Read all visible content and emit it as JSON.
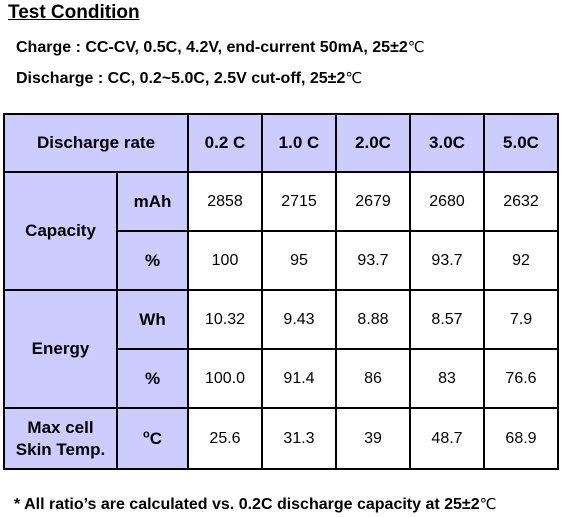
{
  "title": "Test Condition",
  "conditions": {
    "charge": "Charge : CC-CV, 0.5C, 4.2V, end-current 50mA, 25±2",
    "charge_unit": "℃",
    "discharge": "Discharge : CC, 0.2~5.0C, 2.5V cut-off, 25±2",
    "discharge_unit": "℃"
  },
  "table": {
    "header_label": "Discharge rate",
    "rates": [
      "0.2 C",
      "1.0 C",
      "2.0C",
      "3.0C",
      "5.0C"
    ],
    "capacity": {
      "label": "Capacity",
      "mah_unit": "mAh",
      "mah": [
        "2858",
        "2715",
        "2679",
        "2680",
        "2632"
      ],
      "pct_unit": "%",
      "pct": [
        "100",
        "95",
        "93.7",
        "93.7",
        "92"
      ]
    },
    "energy": {
      "label": "Energy",
      "wh_unit": "Wh",
      "wh": [
        "10.32",
        "9.43",
        "8.88",
        "8.57",
        "7.9"
      ],
      "pct_unit": "%",
      "pct": [
        "100.0",
        "91.4",
        "86",
        "83",
        "76.6"
      ]
    },
    "temp": {
      "label_line1": "Max cell",
      "label_line2": "Skin Temp.",
      "unit_sup": "o",
      "unit": "C",
      "values": [
        "25.6",
        "31.3",
        "39",
        "48.7",
        "68.9"
      ]
    }
  },
  "footnote": {
    "text": "* All ratio’s are calculated vs. 0.2C discharge capacity at 25±2",
    "unit": "℃"
  }
}
